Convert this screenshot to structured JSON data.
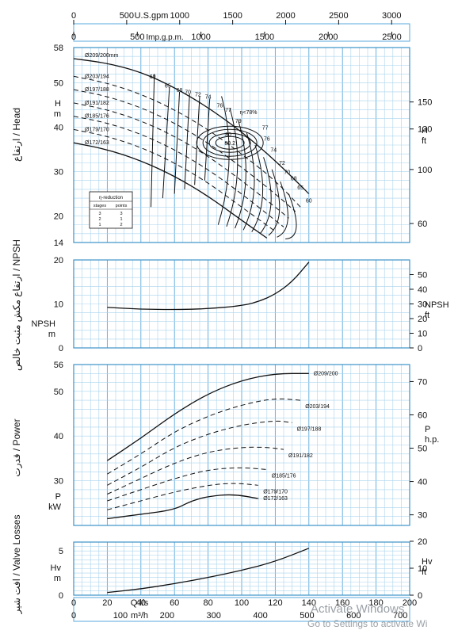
{
  "chart_data": {
    "type": "line",
    "top_axes": {
      "usgpm": {
        "label": "U.S.gpm",
        "ticks": [
          0,
          500,
          1000,
          1500,
          2000,
          2500,
          3000
        ]
      },
      "impgpm": {
        "label": "Imp.g.p.m.",
        "ticks": [
          0,
          500,
          1000,
          1500,
          2000,
          2500
        ]
      }
    },
    "bottom_axes": {
      "ls": {
        "label": "Q l/s",
        "ticks": [
          0,
          20,
          40,
          60,
          80,
          100,
          120,
          140,
          160,
          180,
          200
        ]
      },
      "m3h": {
        "label": "m³/h",
        "ticks": [
          0,
          100,
          200,
          300,
          400,
          500,
          600,
          700
        ]
      }
    },
    "grid": true,
    "panels": {
      "head": {
        "ylabel": "ارتفاع / Head",
        "unit_left": "H m",
        "unit_right": "H ft",
        "ylim": [
          14,
          58
        ],
        "left_ticks": [
          14,
          20,
          30,
          40,
          50,
          58
        ],
        "right_ticks": [
          60,
          100,
          130,
          150
        ],
        "curves": [
          {
            "name": "Ø209/200mm",
            "dashed": false,
            "x": [
              0,
              20,
              40,
              60,
              80,
              100,
              120,
              140
            ],
            "y": [
              55.5,
              54.5,
              52.5,
              49,
              44.5,
              39,
              32.5,
              25
            ]
          },
          {
            "name": "Ø203/194",
            "dashed": true,
            "x": [
              0,
              20,
              40,
              60,
              80,
              100,
              120,
              135
            ],
            "y": [
              51.5,
              50,
              47.5,
              44,
              39.5,
              34,
              28,
              22
            ]
          },
          {
            "name": "Ø197/188",
            "dashed": true,
            "x": [
              0,
              20,
              40,
              60,
              80,
              100,
              120,
              132
            ],
            "y": [
              48.5,
              47,
              44.5,
              41,
              36.5,
              31,
              25,
              21
            ]
          },
          {
            "name": "Ø191/182",
            "dashed": true,
            "x": [
              0,
              20,
              40,
              60,
              80,
              100,
              120,
              128
            ],
            "y": [
              45.5,
              44,
              41.5,
              38,
              33.5,
              28,
              22,
              19.5
            ]
          },
          {
            "name": "Ø185/176",
            "dashed": true,
            "x": [
              0,
              20,
              40,
              60,
              80,
              100,
              120,
              125
            ],
            "y": [
              42.5,
              41,
              38.5,
              35,
              30.5,
              25,
              19,
              17.5
            ]
          },
          {
            "name": "Ø179/170",
            "dashed": true,
            "x": [
              0,
              20,
              40,
              60,
              80,
              100,
              120
            ],
            "y": [
              39.5,
              38,
              35.5,
              32,
              27.5,
              22,
              16.5
            ]
          },
          {
            "name": "Ø172/163",
            "dashed": false,
            "x": [
              0,
              20,
              40,
              60,
              80,
              100,
              115
            ],
            "y": [
              36.5,
              35,
              32.5,
              29,
              24.5,
              19,
              15
            ]
          }
        ],
        "efficiency_labels": [
          {
            "text": "60",
            "x": 47,
            "y": 51
          },
          {
            "text": "65",
            "x": 56,
            "y": 49
          },
          {
            "text": "68",
            "x": 63,
            "y": 48
          },
          {
            "text": "70",
            "x": 68,
            "y": 47.5
          },
          {
            "text": "72",
            "x": 74,
            "y": 47
          },
          {
            "text": "74",
            "x": 80,
            "y": 46.5
          },
          {
            "text": "76",
            "x": 87,
            "y": 44.5
          },
          {
            "text": "77",
            "x": 92,
            "y": 43.5
          },
          {
            "text": "η<78%",
            "x": 104,
            "y": 43
          },
          {
            "text": "79",
            "x": 98,
            "y": 41
          },
          {
            "text": "80",
            "x": 92,
            "y": 38
          },
          {
            "text": "80.2",
            "x": 93,
            "y": 36
          },
          {
            "text": "77",
            "x": 114,
            "y": 39.5
          },
          {
            "text": "76",
            "x": 115,
            "y": 37
          },
          {
            "text": "74",
            "x": 119,
            "y": 34.5
          },
          {
            "text": "72",
            "x": 124,
            "y": 31.5
          },
          {
            "text": "70",
            "x": 127,
            "y": 29.5
          },
          {
            "text": "68",
            "x": 131,
            "y": 28
          },
          {
            "text": "65",
            "x": 135,
            "y": 26
          },
          {
            "text": "60",
            "x": 140,
            "y": 23
          }
        ],
        "reduction_table": {
          "title": "η-reduction",
          "headers": [
            "stages",
            "points"
          ],
          "rows": [
            [
              "3",
              "3"
            ],
            [
              "2",
              "1"
            ],
            [
              "1",
              "2"
            ]
          ]
        }
      },
      "npsh": {
        "ylabel": "ارتفاع مکش مثبت خالص / NPSH",
        "unit_left": "NPSH m",
        "unit_right": "NPSH ft",
        "ylim": [
          0,
          20
        ],
        "left_ticks": [
          0,
          10,
          20
        ],
        "right_ticks": [
          0,
          10,
          20,
          30,
          40,
          50
        ],
        "curve": {
          "x": [
            20,
            40,
            60,
            80,
            100,
            110,
            120,
            130,
            140
          ],
          "y": [
            9.2,
            8.8,
            8.7,
            8.9,
            9.6,
            10.5,
            12.2,
            15,
            19.5
          ]
        }
      },
      "power": {
        "ylabel": "قدرت / Power",
        "unit_left": "P kW",
        "unit_right": "P h.p.",
        "ylim": [
          20,
          56
        ],
        "left_ticks": [
          30,
          40,
          50,
          56
        ],
        "right_ticks": [
          30,
          40,
          50,
          60,
          70
        ],
        "curves": [
          {
            "name": "Ø209/200",
            "dashed": false,
            "x": [
              20,
              40,
              60,
              80,
              100,
              120,
              140
            ],
            "y": [
              34.5,
              39.5,
              45,
              49.5,
              52.5,
              54,
              54
            ]
          },
          {
            "name": "Ø203/194",
            "dashed": true,
            "x": [
              20,
              40,
              60,
              80,
              100,
              120,
              135
            ],
            "y": [
              31.5,
              36,
              41,
              44.5,
              47,
              48.5,
              48
            ]
          },
          {
            "name": "Ø197/188",
            "dashed": true,
            "x": [
              20,
              40,
              60,
              80,
              100,
              120,
              130
            ],
            "y": [
              29,
              33,
              37.5,
              40.5,
              42.5,
              43.5,
              43
            ]
          },
          {
            "name": "Ø191/182",
            "dashed": true,
            "x": [
              20,
              40,
              60,
              80,
              100,
              115,
              125
            ],
            "y": [
              27,
              30.5,
              34,
              36.5,
              37.5,
              37.5,
              37
            ]
          },
          {
            "name": "Ø185/176",
            "dashed": true,
            "x": [
              20,
              40,
              60,
              80,
              100,
              115
            ],
            "y": [
              25.5,
              28,
              30.5,
              32.5,
              33,
              32.5
            ]
          },
          {
            "name": "Ø179/170",
            "dashed": true,
            "x": [
              20,
              40,
              60,
              80,
              95,
              110
            ],
            "y": [
              23.5,
              25.5,
              27.5,
              29,
              29.5,
              29
            ]
          },
          {
            "name": "Ø172/163",
            "dashed": false,
            "x": [
              20,
              40,
              60,
              70,
              80,
              95,
              110
            ],
            "y": [
              21.5,
              22.5,
              23.5,
              25.5,
              26.5,
              27,
              26
            ]
          }
        ]
      },
      "valve": {
        "ylabel": "افت شیر / Valve Losses",
        "unit_left": "Hv m",
        "unit_right": "Hv ft",
        "ylim": [
          0,
          6
        ],
        "left_ticks": [
          0,
          5
        ],
        "right_ticks": [
          0,
          10,
          20
        ],
        "curve": {
          "x": [
            20,
            40,
            60,
            80,
            100,
            120,
            140
          ],
          "y": [
            0.3,
            0.7,
            1.3,
            2.0,
            2.8,
            3.8,
            5.3
          ]
        }
      }
    }
  },
  "watermark": {
    "line1": "Activate Windows",
    "line2": "Go to Settings to activate Wi"
  }
}
